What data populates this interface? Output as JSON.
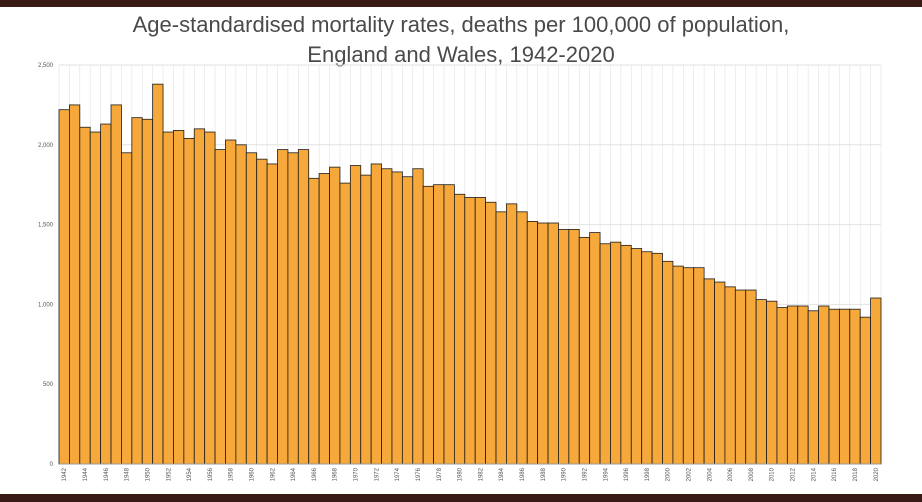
{
  "chart_data": {
    "type": "bar",
    "title_line1": "Age-standardised mortality rates, deaths per 100,000 of population,",
    "title_line2": "England and Wales, 1942-2020",
    "xlabel": "",
    "ylabel": "",
    "ylim": [
      0,
      2500
    ],
    "yticks": [
      0,
      500,
      1000,
      1500,
      2000,
      2500
    ],
    "ytick_labels": [
      "0",
      "500",
      "1,000",
      "1,500",
      "2,000",
      "2,500"
    ],
    "grid": true,
    "x": [
      1942,
      1943,
      1944,
      1945,
      1946,
      1947,
      1948,
      1949,
      1950,
      1951,
      1952,
      1953,
      1954,
      1955,
      1956,
      1957,
      1958,
      1959,
      1960,
      1961,
      1962,
      1963,
      1964,
      1965,
      1966,
      1967,
      1968,
      1969,
      1970,
      1971,
      1972,
      1973,
      1974,
      1975,
      1976,
      1977,
      1978,
      1979,
      1980,
      1981,
      1982,
      1983,
      1984,
      1985,
      1986,
      1987,
      1988,
      1989,
      1990,
      1991,
      1992,
      1993,
      1994,
      1995,
      1996,
      1997,
      1998,
      1999,
      2000,
      2001,
      2002,
      2003,
      2004,
      2005,
      2006,
      2007,
      2008,
      2009,
      2010,
      2011,
      2012,
      2013,
      2014,
      2015,
      2016,
      2017,
      2018,
      2019,
      2020
    ],
    "values": [
      2220,
      2250,
      2110,
      2080,
      2130,
      2250,
      1950,
      2170,
      2160,
      2380,
      2080,
      2090,
      2040,
      2100,
      2080,
      1970,
      2030,
      2000,
      1950,
      1910,
      1880,
      1970,
      1950,
      1970,
      1790,
      1820,
      1860,
      1760,
      1870,
      1810,
      1880,
      1850,
      1830,
      1800,
      1850,
      1740,
      1750,
      1750,
      1690,
      1670,
      1670,
      1640,
      1580,
      1630,
      1580,
      1520,
      1510,
      1510,
      1470,
      1470,
      1420,
      1450,
      1380,
      1390,
      1370,
      1350,
      1330,
      1320,
      1270,
      1240,
      1230,
      1230,
      1160,
      1140,
      1110,
      1090,
      1090,
      1030,
      1020,
      980,
      990,
      990,
      960,
      990,
      970,
      970,
      970,
      920,
      1040
    ],
    "tick_years": [
      1942,
      1944,
      1946,
      1948,
      1950,
      1952,
      1954,
      1956,
      1958,
      1960,
      1962,
      1964,
      1966,
      1968,
      1970,
      1972,
      1974,
      1976,
      1978,
      1980,
      1982,
      1984,
      1986,
      1988,
      1990,
      1992,
      1994,
      1996,
      1998,
      2000,
      2002,
      2004,
      2006,
      2008,
      2010,
      2012,
      2014,
      2016,
      2018,
      2020
    ],
    "colors": {
      "bar": "#f6a83a",
      "bar_edge": "#1c1c1c",
      "grid": "#e2e2e2",
      "axis_text": "#555555"
    }
  }
}
